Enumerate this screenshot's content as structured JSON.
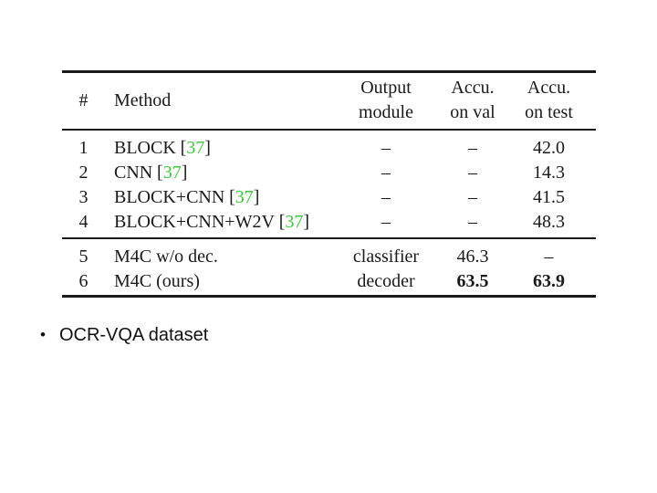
{
  "colors": {
    "citation_green": "#3dc93d",
    "text": "#1a1a1a"
  },
  "table": {
    "headers": {
      "num": "#",
      "method": "Method",
      "output": "Output\nmodule",
      "val": "Accu.\non val",
      "test": "Accu.\non test"
    },
    "cite_open": "[",
    "cite_close": "]",
    "rows": [
      {
        "num": "1",
        "method": "BLOCK",
        "cite": "37",
        "output": "–",
        "val": "–",
        "test": "42.0"
      },
      {
        "num": "2",
        "method": "CNN",
        "cite": "37",
        "output": "–",
        "val": "–",
        "test": "14.3"
      },
      {
        "num": "3",
        "method": "BLOCK+CNN",
        "cite": "37",
        "output": "–",
        "val": "–",
        "test": "41.5"
      },
      {
        "num": "4",
        "method": "BLOCK+CNN+W2V",
        "cite": "37",
        "output": "–",
        "val": "–",
        "test": "48.3"
      },
      {
        "num": "5",
        "method": "M4C w/o dec.",
        "output": "classifier",
        "val": "46.3",
        "test": "–"
      },
      {
        "num": "6",
        "method": "M4C (ours)",
        "output": "decoder",
        "val": "63.5",
        "test": "63.9"
      }
    ]
  },
  "bullet": {
    "marker": "•",
    "text": "OCR-VQA dataset"
  }
}
